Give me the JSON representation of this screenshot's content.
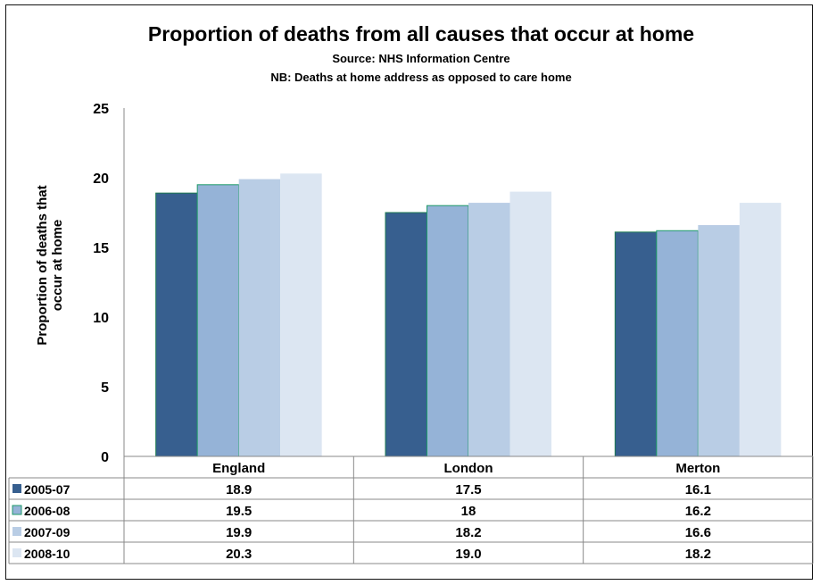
{
  "chart_data": {
    "type": "bar",
    "title": "Proportion of deaths from all causes that occur at home",
    "subtitles": [
      "Source: NHS Information Centre",
      "NB: Deaths at home address as opposed to care home"
    ],
    "ylabel_lines": [
      "Proportion of deaths that",
      "occur at home"
    ],
    "ylim": [
      0,
      25
    ],
    "yticks": [
      "0",
      "5",
      "10",
      "15",
      "20",
      "25"
    ],
    "grid": false,
    "legend_placement": "data-table",
    "categories": [
      "England",
      "London",
      "Merton"
    ],
    "series": [
      {
        "name": "2005-07",
        "color": "#375f8f",
        "values": [
          18.9,
          17.5,
          16.1
        ],
        "labels": [
          "18.9",
          "17.5",
          "16.1"
        ]
      },
      {
        "name": "2006-08",
        "color": "#95b3d7",
        "values": [
          19.5,
          18,
          16.2
        ],
        "labels": [
          "19.5",
          "18",
          "16.2"
        ]
      },
      {
        "name": "2007-09",
        "color": "#b9cde5",
        "values": [
          19.9,
          18.2,
          16.6
        ],
        "labels": [
          "19.9",
          "18.2",
          "16.6"
        ]
      },
      {
        "name": "2008-10",
        "color": "#dce6f2",
        "values": [
          20.3,
          19.0,
          18.2
        ],
        "labels": [
          "20.3",
          "19.0",
          "18.2"
        ]
      }
    ]
  }
}
